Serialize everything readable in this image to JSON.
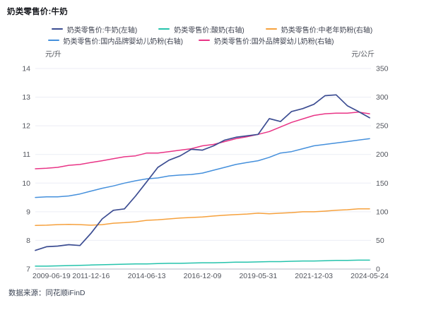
{
  "page": {
    "title": "奶类零售价:牛奶",
    "source": "数据来源：同花顺iFinD"
  },
  "colors": {
    "grid": "#ecedf5",
    "axis_line": "#b6bac6",
    "tick_text": "#53565e",
    "legend_text": "#3f4350",
    "title_text": "#16181d",
    "footer_text": "#3c4454"
  },
  "chart_data": {
    "type": "line",
    "title": "奶类零售价:牛奶",
    "legend_position": "top",
    "grid": "horizontal",
    "left_axis": {
      "label": "元/升",
      "min": 7,
      "max": 14,
      "ticks": [
        7,
        8,
        9,
        10,
        11,
        12,
        13,
        14
      ]
    },
    "right_axis": {
      "label": "元/公斤",
      "min": 0,
      "max": 350,
      "ticks": [
        0,
        50,
        100,
        150,
        200,
        250,
        300,
        350
      ]
    },
    "x_tick_labels": [
      "2009-06-19",
      "2011-12-16",
      "2014-06-13",
      "2016-12-09",
      "2019-05-31",
      "2021-12-03",
      "2024-05-24"
    ],
    "x_note": "31 samples evenly spaced from 2009-06-19 to 2024-05-24 (~every 6 months)",
    "series": [
      {
        "name": "奶类零售价:牛奶(左轴)",
        "axis": "left",
        "unit": "元/升",
        "color": "#3c4d92",
        "values": [
          7.65,
          7.78,
          7.8,
          7.85,
          7.82,
          8.25,
          8.75,
          9.05,
          9.1,
          9.55,
          10.05,
          10.55,
          10.8,
          10.95,
          11.18,
          11.15,
          11.3,
          11.5,
          11.6,
          11.65,
          11.7,
          12.25,
          12.15,
          12.5,
          12.6,
          12.75,
          13.05,
          13.08,
          12.7,
          12.5,
          12.28
        ]
      },
      {
        "name": "奶类零售价:酸奶(右轴)",
        "axis": "right",
        "unit": "元/公斤",
        "color": "#25c3ac",
        "values": [
          5,
          5,
          5.5,
          6,
          6.5,
          7,
          7.5,
          8,
          8.5,
          9,
          9,
          9.5,
          10,
          10,
          10.5,
          11,
          11,
          11.5,
          12,
          12,
          12.5,
          13,
          13,
          13.5,
          14,
          14,
          14.5,
          15,
          15,
          15.5,
          15.5
        ]
      },
      {
        "name": "奶类零售价:中老年奶粉(右轴)",
        "axis": "right",
        "unit": "元/公斤",
        "color": "#f6a13d",
        "values": [
          76,
          76.5,
          77.5,
          78,
          77.5,
          76.5,
          77.5,
          80,
          81,
          82.5,
          85,
          86,
          87.5,
          89,
          90,
          91,
          92.5,
          94,
          95,
          96,
          97.5,
          96.5,
          97.5,
          98.5,
          100,
          100,
          101,
          102.5,
          103.5,
          105,
          105
        ]
      },
      {
        "name": "奶类零售价:国内品牌婴幼儿奶粉(右轴)",
        "axis": "right",
        "unit": "元/公斤",
        "color": "#4590dc",
        "values": [
          125,
          126,
          126,
          127.5,
          131,
          136,
          141,
          145,
          150,
          154,
          157.5,
          159,
          162.5,
          164,
          165,
          167.5,
          172.5,
          177.5,
          182.5,
          186,
          189,
          195,
          202.5,
          205,
          210,
          215,
          217.5,
          220,
          222.5,
          225,
          227.5
        ]
      },
      {
        "name": "奶类零售价:国外品牌婴幼儿奶粉(右轴)",
        "axis": "right",
        "unit": "元/公斤",
        "color": "#e93486",
        "values": [
          175,
          176,
          177.5,
          181,
          182.5,
          186,
          189,
          192.5,
          196,
          197.5,
          202.5,
          202.5,
          205,
          207.5,
          210,
          215,
          217.5,
          222.5,
          227.5,
          231,
          235,
          240,
          248,
          256,
          262,
          268,
          271,
          272,
          272,
          274,
          271
        ]
      }
    ],
    "legend_rows": [
      [
        0,
        1,
        2
      ],
      [
        3,
        4
      ]
    ]
  }
}
